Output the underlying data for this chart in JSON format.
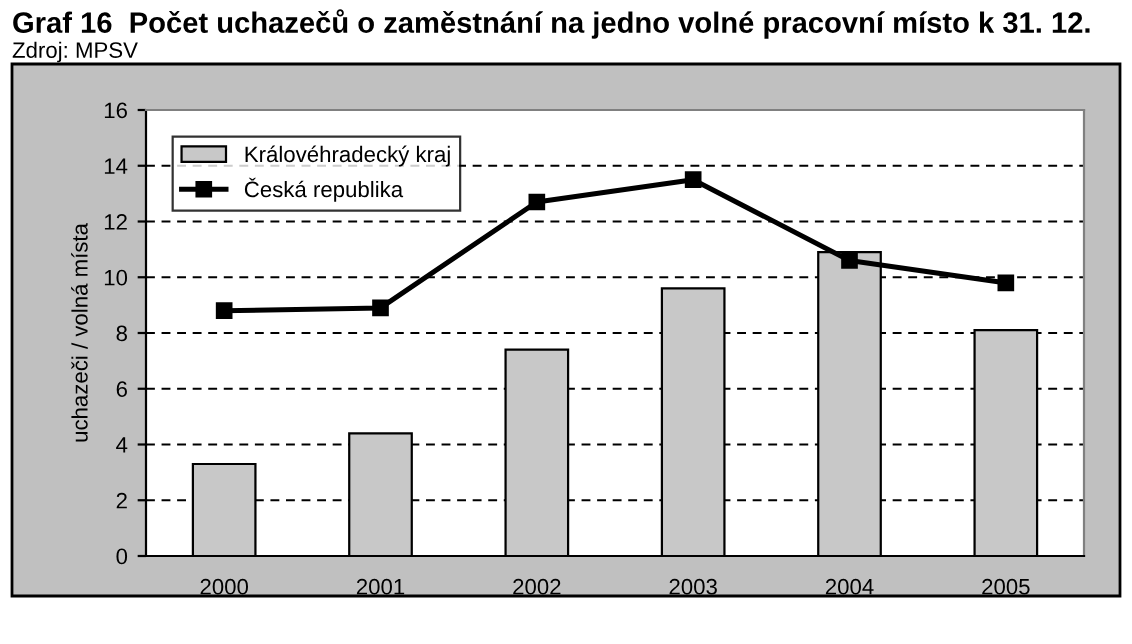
{
  "chart_data": {
    "type": "bar",
    "title": "Graf 16  Počet uchazečů o zaměstnání na jedno volné pracovní místo k 31. 12.",
    "annotations": [
      "Zdroj: MPSV"
    ],
    "ylabel": "uchazeči / volná místa",
    "categories": [
      "2000",
      "2001",
      "2002",
      "2003",
      "2004",
      "2005"
    ],
    "series": [
      {
        "name": "Královéhradecký kraj",
        "color": "#c8c8c8",
        "values": [
          3.3,
          4.4,
          7.4,
          9.6,
          10.9,
          8.1
        ]
      },
      {
        "name": "Česká republika",
        "type": "line",
        "color": "#000000",
        "marker": "square",
        "values": [
          8.8,
          8.9,
          12.7,
          13.5,
          10.6,
          9.8
        ]
      }
    ],
    "ylim": [
      0,
      16
    ],
    "yticks": [
      0,
      2,
      4,
      6,
      8,
      10,
      12,
      14,
      16
    ],
    "grid": "y",
    "legend": "top left"
  }
}
